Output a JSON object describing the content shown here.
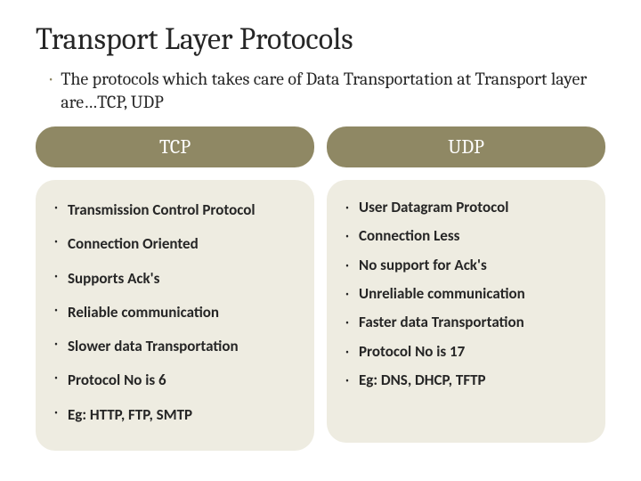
{
  "title": "Transport Layer Protocols",
  "intro": "The protocols which takes care of Data Transportation at Transport layer are…TCP, UDP",
  "columns": {
    "left": {
      "header": "TCP",
      "items": [
        "Transmission Control Protocol",
        "Connection Oriented",
        "Supports Ack's",
        "Reliable communication",
        "Slower data Transportation",
        "Protocol No is  6",
        "Eg: HTTP, FTP, SMTP"
      ]
    },
    "right": {
      "header": "UDP",
      "items": [
        "User Datagram Protocol",
        "Connection Less",
        "No support for Ack's",
        "Unreliable communication",
        "Faster data Transportation",
        "Protocol No  is  17",
        " Eg: DNS, DHCP, TFTP"
      ]
    }
  },
  "style": {
    "slide_bg": "#ffffff",
    "title_color": "#262626",
    "title_fontsize": 34,
    "intro_fontsize": 20,
    "intro_bullet_color": "#8f8764",
    "pill_bg": "#8f8864",
    "pill_text_color": "#ffffff",
    "pill_fontsize": 22,
    "pill_radius": 22,
    "box_bg": "#eeece1",
    "box_radius": 22,
    "body_fontsize": 17,
    "body_text_color": "#262626",
    "body_bullet_glyph": "•"
  }
}
